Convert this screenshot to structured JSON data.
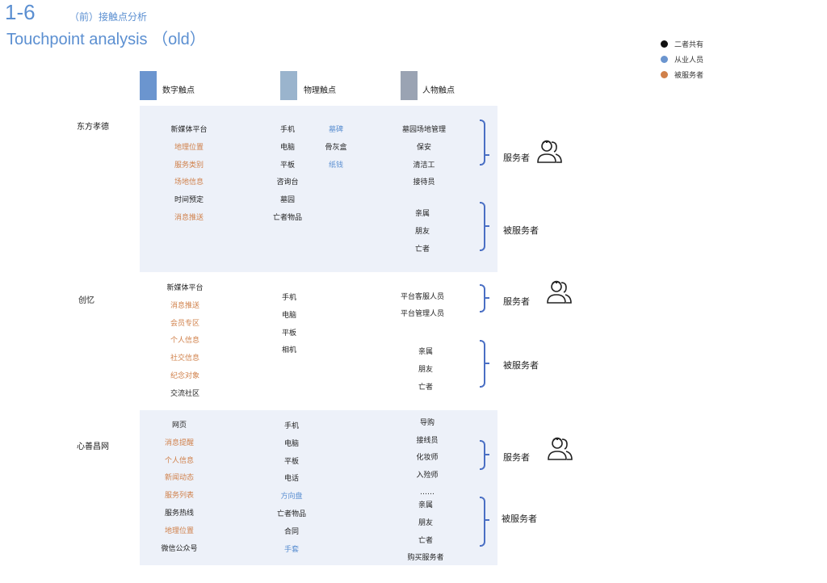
{
  "header": {
    "number": "1-6",
    "subtitle_cn": "（前）接触点分析",
    "subtitle_en": "Touchpoint analysis （old）"
  },
  "legend": [
    {
      "label": "二者共有",
      "color": "#111111"
    },
    {
      "label": "从业人员",
      "color": "#6b95cf"
    },
    {
      "label": "被服务者",
      "color": "#d0804a"
    }
  ],
  "columns": [
    {
      "label": "数字触点",
      "color": "#6b95cf"
    },
    {
      "label": "物理触点",
      "color": "#9ab4cd"
    },
    {
      "label": "人物触点",
      "color": "#9aa3b3"
    }
  ],
  "roles": {
    "provider": "服务者",
    "served": "被服务者"
  },
  "groups": [
    {
      "name": "东方孝德",
      "digital": [
        {
          "text": "新媒体平台",
          "type": "shared"
        },
        {
          "text": "地理位置",
          "type": "served"
        },
        {
          "text": "服务类别",
          "type": "served"
        },
        {
          "text": "场地信息",
          "type": "served"
        },
        {
          "text": "时间预定",
          "type": "shared"
        },
        {
          "text": "消息推送",
          "type": "served"
        }
      ],
      "physical": [
        {
          "text": "手机",
          "type": "shared"
        },
        {
          "text": "电脑",
          "type": "shared"
        },
        {
          "text": "平板",
          "type": "shared"
        },
        {
          "text": "咨询台",
          "type": "shared"
        },
        {
          "text": "墓园",
          "type": "shared"
        },
        {
          "text": "亡者物品",
          "type": "shared"
        }
      ],
      "physical2": [
        {
          "text": "墓碑",
          "type": "staff"
        },
        {
          "text": "骨灰盒",
          "type": "shared"
        },
        {
          "text": "纸钱",
          "type": "staff"
        }
      ],
      "people_provider": [
        "墓园场地管理",
        "保安",
        "清洁工",
        "接待员"
      ],
      "people_served": [
        "亲属",
        "朋友",
        "亡者"
      ]
    },
    {
      "name": "创忆",
      "digital": [
        {
          "text": "新媒体平台",
          "type": "shared"
        },
        {
          "text": "消息推送",
          "type": "served"
        },
        {
          "text": "会员专区",
          "type": "served"
        },
        {
          "text": "个人信息",
          "type": "served"
        },
        {
          "text": "社交信息",
          "type": "served"
        },
        {
          "text": "纪念对象",
          "type": "served"
        },
        {
          "text": "交流社区",
          "type": "shared"
        }
      ],
      "physical": [
        {
          "text": "手机",
          "type": "shared"
        },
        {
          "text": "电脑",
          "type": "shared"
        },
        {
          "text": "平板",
          "type": "shared"
        },
        {
          "text": "相机",
          "type": "shared"
        }
      ],
      "people_provider": [
        "平台客服人员",
        "平台管理人员"
      ],
      "people_served": [
        "亲属",
        "朋友",
        "亡者"
      ]
    },
    {
      "name": "心善昌网",
      "digital": [
        {
          "text": "网页",
          "type": "shared"
        },
        {
          "text": "消息提醒",
          "type": "served"
        },
        {
          "text": "个人信息",
          "type": "served"
        },
        {
          "text": "新闻动态",
          "type": "served"
        },
        {
          "text": "服务列表",
          "type": "served"
        },
        {
          "text": "服务热线",
          "type": "shared"
        },
        {
          "text": "地理位置",
          "type": "served"
        },
        {
          "text": "微信公众号",
          "type": "shared"
        }
      ],
      "physical": [
        {
          "text": "手机",
          "type": "shared"
        },
        {
          "text": "电脑",
          "type": "shared"
        },
        {
          "text": "平板",
          "type": "shared"
        },
        {
          "text": "电话",
          "type": "shared"
        },
        {
          "text": "方向盘",
          "type": "staff"
        },
        {
          "text": "亡者物品",
          "type": "shared"
        },
        {
          "text": "合同",
          "type": "shared"
        },
        {
          "text": "手套",
          "type": "staff"
        }
      ],
      "people_provider": [
        "导购",
        "接线员",
        "化妆师",
        "入殓师",
        "……"
      ],
      "people_served": [
        "亲属",
        "朋友",
        "亡者",
        "购买服务者"
      ]
    }
  ]
}
